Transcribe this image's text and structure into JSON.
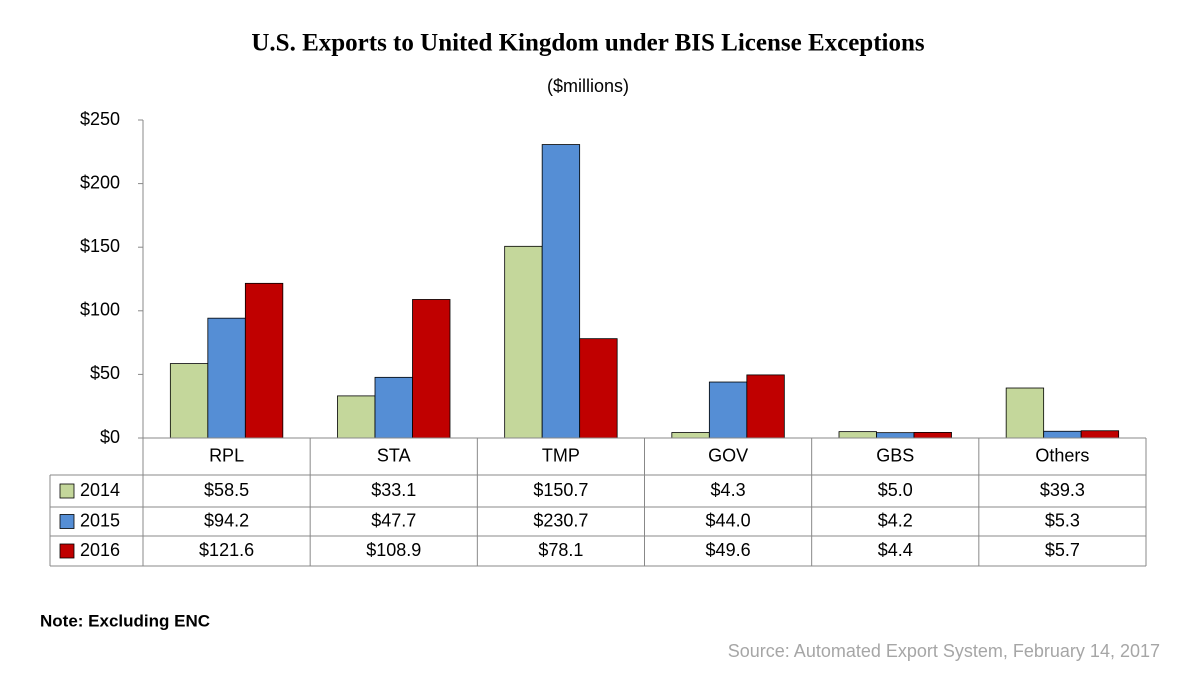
{
  "chart_data": {
    "type": "bar",
    "title": "U.S. Exports to United Kingdom under BIS License Exceptions",
    "subtitle": "($millions)",
    "categories": [
      "RPL",
      "STA",
      "TMP",
      "GOV",
      "GBS",
      "Others"
    ],
    "series": [
      {
        "name": "2014",
        "color": "#c4d79b",
        "values": [
          58.5,
          33.1,
          150.7,
          4.3,
          5.0,
          39.3
        ],
        "value_labels": [
          "$58.5",
          "$33.1",
          "$150.7",
          "$4.3",
          "$5.0",
          "$39.3"
        ]
      },
      {
        "name": "2015",
        "color": "#558ed5",
        "values": [
          94.2,
          47.7,
          230.7,
          44.0,
          4.2,
          5.3
        ],
        "value_labels": [
          "$94.2",
          "$47.7",
          "$230.7",
          "$44.0",
          "$4.2",
          "$5.3"
        ]
      },
      {
        "name": "2016",
        "color": "#c00000",
        "values": [
          121.6,
          108.9,
          78.1,
          49.6,
          4.4,
          5.7
        ],
        "value_labels": [
          "$121.6",
          "$108.9",
          "$78.1",
          "$49.6",
          "$4.4",
          "$5.7"
        ]
      }
    ],
    "ylim": [
      0,
      250
    ],
    "yticks": [
      {
        "value": 0,
        "label": "$0"
      },
      {
        "value": 50,
        "label": "$50"
      },
      {
        "value": 100,
        "label": "$100"
      },
      {
        "value": 150,
        "label": "$150"
      },
      {
        "value": 200,
        "label": "$200"
      },
      {
        "value": 250,
        "label": "$250"
      }
    ],
    "note": "Note: Excluding ENC",
    "source": "Source: Automated Export System, February 14, 2017"
  }
}
